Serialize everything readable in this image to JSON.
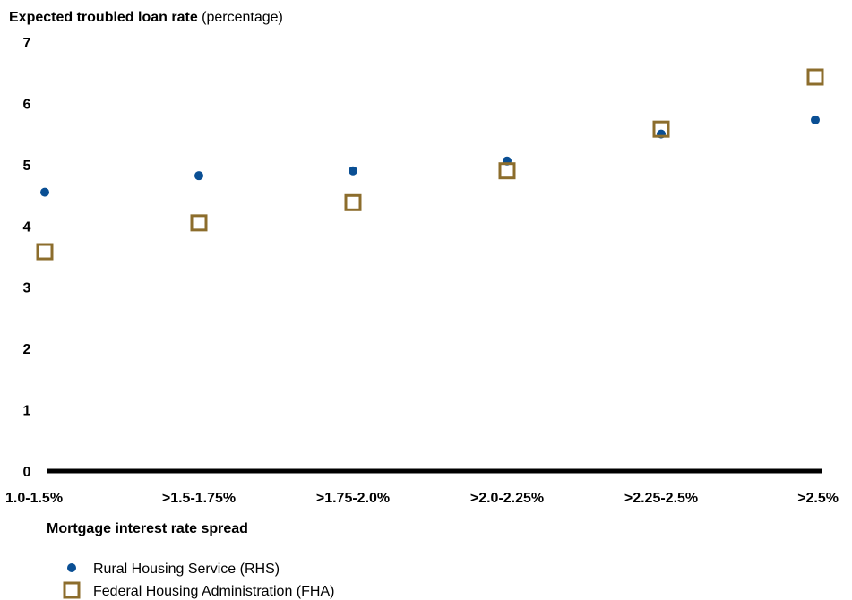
{
  "chart_data": {
    "type": "scatter",
    "title_bold": "Expected troubled loan rate",
    "title_rest": " (percentage)",
    "xlabel": "Mortgage interest rate spread",
    "ylabel": "",
    "categories": [
      "1.0-1.5%",
      ">1.5-1.75%",
      ">1.75-2.0%",
      ">2.0-2.25%",
      ">2.25-2.5%",
      ">2.5%"
    ],
    "ylim": [
      0,
      7
    ],
    "yticks": [
      "0",
      "1",
      "2",
      "3",
      "4",
      "5",
      "6",
      "7"
    ],
    "grid": false,
    "legend_position": "bottom-left",
    "series": [
      {
        "name": "Rural Housing Service (RHS)",
        "marker": "circle",
        "color": "#0a4f94",
        "values": [
          4.55,
          4.82,
          4.9,
          5.06,
          5.5,
          5.73
        ]
      },
      {
        "name": "Federal Housing Administration (FHA)",
        "marker": "square",
        "color": "#8c6d2c",
        "values": [
          3.58,
          4.05,
          4.38,
          4.9,
          5.58,
          6.43
        ]
      }
    ]
  }
}
